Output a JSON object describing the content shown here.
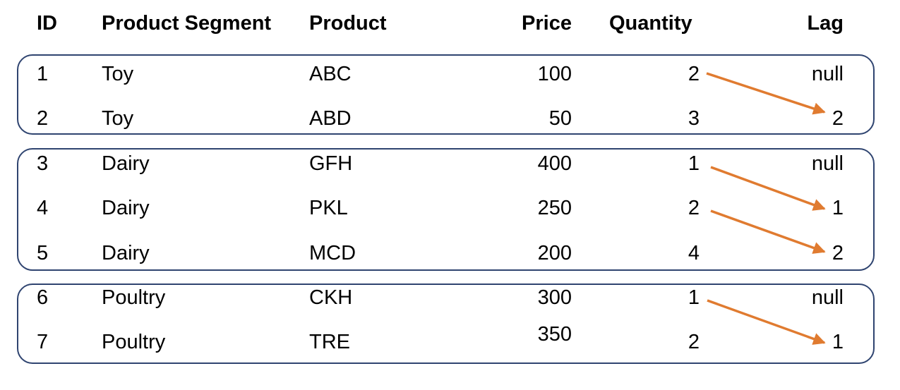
{
  "headers": {
    "id": "ID",
    "segment": "Product Segment",
    "product": "Product",
    "price": "Price",
    "quantity": "Quantity",
    "lag": "Lag"
  },
  "rows": [
    {
      "id": "1",
      "segment": "Toy",
      "product": "ABC",
      "price": "100",
      "quantity": "2",
      "lag": "null"
    },
    {
      "id": "2",
      "segment": "Toy",
      "product": "ABD",
      "price": "50",
      "quantity": "3",
      "lag": "2"
    },
    {
      "id": "3",
      "segment": "Dairy",
      "product": "GFH",
      "price": "400",
      "quantity": "1",
      "lag": "null"
    },
    {
      "id": "4",
      "segment": "Dairy",
      "product": "PKL",
      "price": "250",
      "quantity": "2",
      "lag": "1"
    },
    {
      "id": "5",
      "segment": "Dairy",
      "product": "MCD",
      "price": "200",
      "quantity": "4",
      "lag": "2"
    },
    {
      "id": "6",
      "segment": "Poultry",
      "product": "CKH",
      "price": "300",
      "quantity": "1",
      "lag": "null"
    },
    {
      "id": "7",
      "segment": "Poultry",
      "product": "TRE",
      "price": "350",
      "quantity": "2",
      "lag": "1"
    }
  ],
  "colors": {
    "group_border": "#2f4470",
    "arrow": "#e07b30"
  }
}
